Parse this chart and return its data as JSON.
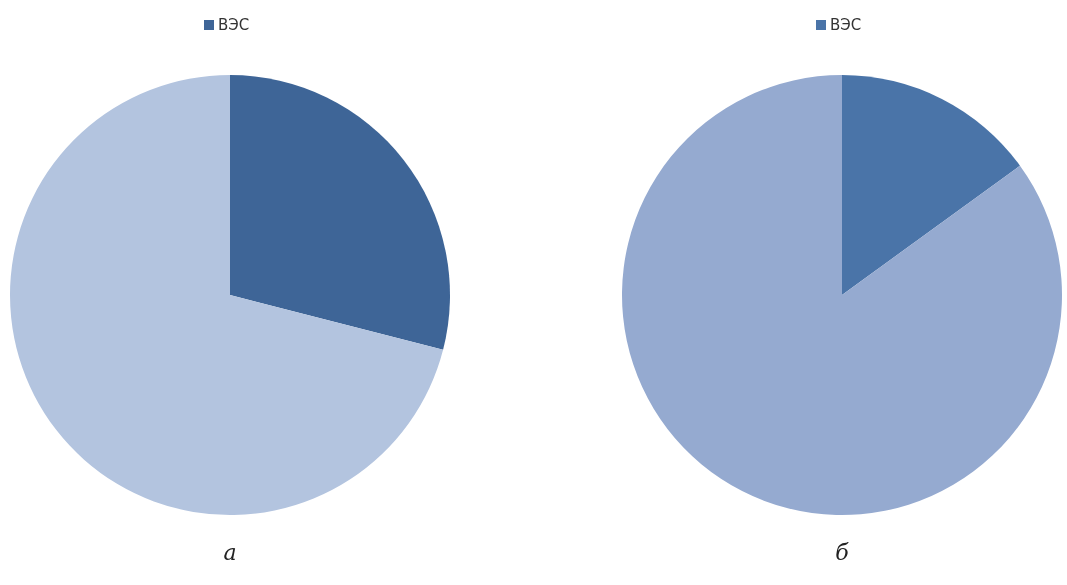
{
  "chart_data": [
    {
      "type": "pie",
      "title": "а",
      "categories": [
        "ВЭС",
        null
      ],
      "values": [
        29,
        71
      ],
      "colors": [
        "#3e6597",
        "#b3c4df"
      ],
      "legend": "top"
    },
    {
      "type": "pie",
      "title": "б",
      "categories": [
        "ВЭС",
        null
      ],
      "values": [
        15,
        85
      ],
      "colors": [
        "#4a74a8",
        "#95aad0"
      ],
      "legend": "top"
    }
  ]
}
